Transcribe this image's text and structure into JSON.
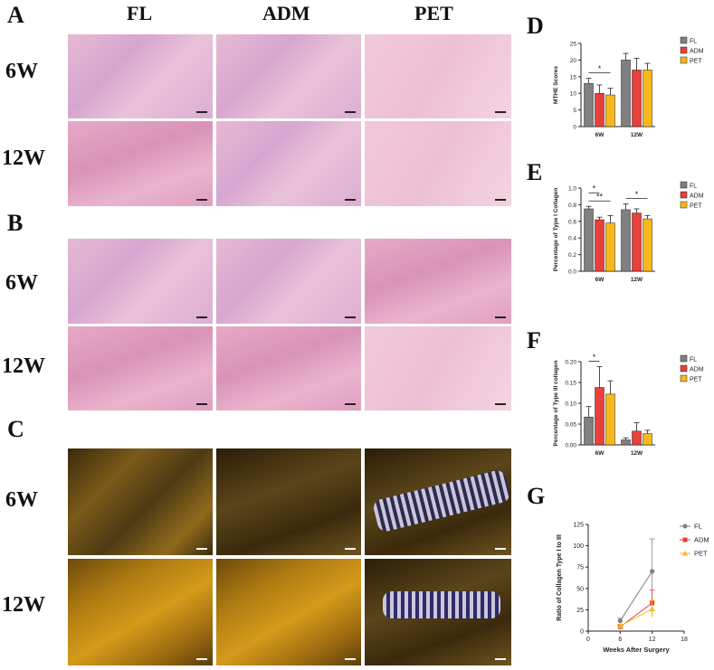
{
  "panels": {
    "A": "A",
    "B": "B",
    "C": "C",
    "D": "D",
    "E": "E",
    "F": "F",
    "G": "G"
  },
  "columns": [
    "FL",
    "ADM",
    "PET"
  ],
  "rows": [
    "6W",
    "12W"
  ],
  "colors": {
    "FL": "#808080",
    "ADM": "#e8403a",
    "PET": "#f6b81a"
  },
  "chart_data": [
    {
      "panel": "D",
      "type": "bar",
      "categories": [
        "6W",
        "12W"
      ],
      "ylabel": "MTHE Scores",
      "ylim": [
        0,
        25
      ],
      "yticks": [
        0,
        5,
        10,
        15,
        20,
        25
      ],
      "legend": "top-right",
      "series": [
        {
          "name": "FL",
          "values": [
            13,
            20
          ],
          "errors": [
            1.5,
            2
          ]
        },
        {
          "name": "ADM",
          "values": [
            10,
            17
          ],
          "errors": [
            2.5,
            3.5
          ]
        },
        {
          "name": "PET",
          "values": [
            9.5,
            17
          ],
          "errors": [
            2,
            2
          ]
        }
      ],
      "annotations": [
        {
          "text": "*",
          "between": [
            "FL",
            "PET"
          ],
          "category": "6W"
        }
      ]
    },
    {
      "panel": "E",
      "type": "bar",
      "categories": [
        "6W",
        "12W"
      ],
      "ylabel": "Percentage of Type I Collagen",
      "ylim": [
        0,
        1.0
      ],
      "yticks": [
        "0.0",
        "0.2",
        "0.4",
        "0.6",
        "0.8",
        "1.0"
      ],
      "legend": "top-right",
      "series": [
        {
          "name": "FL",
          "values": [
            0.75,
            0.74
          ],
          "errors": [
            0.03,
            0.07
          ]
        },
        {
          "name": "ADM",
          "values": [
            0.62,
            0.7
          ],
          "errors": [
            0.03,
            0.05
          ]
        },
        {
          "name": "PET",
          "values": [
            0.58,
            0.63
          ],
          "errors": [
            0.09,
            0.04
          ]
        }
      ],
      "annotations": [
        {
          "text": "**",
          "between": [
            "FL",
            "PET"
          ],
          "category": "6W"
        },
        {
          "text": "*",
          "between": [
            "FL",
            "ADM"
          ],
          "category": "6W"
        },
        {
          "text": "*",
          "between": [
            "FL",
            "PET"
          ],
          "category": "12W"
        }
      ]
    },
    {
      "panel": "F",
      "type": "bar",
      "categories": [
        "6W",
        "12W"
      ],
      "ylabel": "Percentage of Type III collagen",
      "ylim": [
        0,
        0.2
      ],
      "yticks": [
        "0.00",
        "0.05",
        "0.10",
        "0.15",
        "0.20"
      ],
      "legend": "top-right",
      "series": [
        {
          "name": "FL",
          "values": [
            0.067,
            0.012
          ],
          "errors": [
            0.025,
            0.005
          ]
        },
        {
          "name": "ADM",
          "values": [
            0.138,
            0.033
          ],
          "errors": [
            0.05,
            0.02
          ]
        },
        {
          "name": "PET",
          "values": [
            0.122,
            0.027
          ],
          "errors": [
            0.032,
            0.008
          ]
        }
      ],
      "annotations": [
        {
          "text": "*",
          "between": [
            "FL",
            "ADM"
          ],
          "category": "6W"
        }
      ]
    },
    {
      "panel": "G",
      "type": "line",
      "xlabel": "Weeks After Surgery",
      "ylabel": "Ratio of Collagen Type I to III",
      "xlim": [
        0,
        18
      ],
      "ylim": [
        0,
        125
      ],
      "xticks": [
        0,
        6,
        12,
        18
      ],
      "yticks": [
        0,
        25,
        50,
        75,
        100,
        125
      ],
      "legend": "top-right",
      "x": [
        6,
        12
      ],
      "series": [
        {
          "name": "FL",
          "values": [
            12,
            70
          ],
          "errors": [
            3,
            38
          ]
        },
        {
          "name": "ADM",
          "values": [
            5,
            33
          ],
          "errors": [
            2,
            15
          ]
        },
        {
          "name": "PET",
          "values": [
            6,
            26
          ],
          "errors": [
            2,
            10
          ]
        }
      ]
    }
  ]
}
